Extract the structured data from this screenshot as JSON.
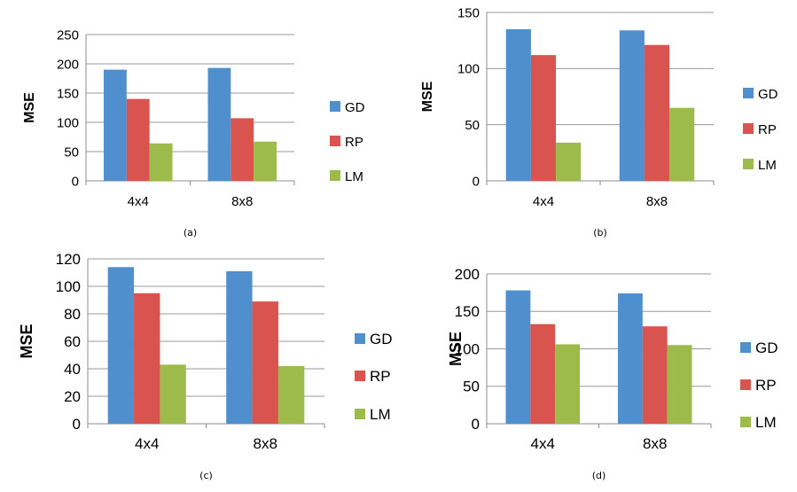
{
  "colors": {
    "GD": "#4f8fce",
    "RP": "#d9534f",
    "LM": "#9dbb4a",
    "grid": "#9a9a9a",
    "axis": "#8c8c8c"
  },
  "chart_data": [
    {
      "type": "bar",
      "caption": "(a)",
      "categories": [
        "4x4",
        "8x8"
      ],
      "ylabel": "MSE",
      "ylim": [
        0,
        250
      ],
      "yticks": [
        0,
        50,
        100,
        150,
        200,
        250
      ],
      "grid": true,
      "legend_position": "right",
      "series": [
        {
          "name": "GD",
          "values": [
            190,
            193
          ]
        },
        {
          "name": "RP",
          "values": [
            140,
            107
          ]
        },
        {
          "name": "LM",
          "values": [
            64,
            67
          ]
        }
      ]
    },
    {
      "type": "bar",
      "caption": "(b)",
      "categories": [
        "4x4",
        "8x8"
      ],
      "ylabel": "MSE",
      "ylim": [
        0,
        150
      ],
      "yticks": [
        0,
        50,
        100,
        150
      ],
      "grid": true,
      "legend_position": "right",
      "series": [
        {
          "name": "GD",
          "values": [
            135,
            134
          ]
        },
        {
          "name": "RP",
          "values": [
            112,
            121
          ]
        },
        {
          "name": "LM",
          "values": [
            34,
            65
          ]
        }
      ]
    },
    {
      "type": "bar",
      "caption": "(c)",
      "categories": [
        "4x4",
        "8x8"
      ],
      "ylabel": "MSE",
      "ylim": [
        0,
        120
      ],
      "yticks": [
        0,
        20,
        40,
        60,
        80,
        100,
        120
      ],
      "grid": true,
      "legend_position": "right",
      "series": [
        {
          "name": "GD",
          "values": [
            114,
            111
          ]
        },
        {
          "name": "RP",
          "values": [
            95,
            89
          ]
        },
        {
          "name": "LM",
          "values": [
            43,
            42
          ]
        }
      ]
    },
    {
      "type": "bar",
      "caption": "(d)",
      "categories": [
        "4x4",
        "8x8"
      ],
      "ylabel": "MSE",
      "ylim": [
        0,
        200
      ],
      "yticks": [
        0,
        50,
        100,
        150,
        200
      ],
      "grid": true,
      "legend_position": "right",
      "series": [
        {
          "name": "GD",
          "values": [
            178,
            174
          ]
        },
        {
          "name": "RP",
          "values": [
            133,
            130
          ]
        },
        {
          "name": "LM",
          "values": [
            106,
            105
          ]
        }
      ]
    }
  ]
}
